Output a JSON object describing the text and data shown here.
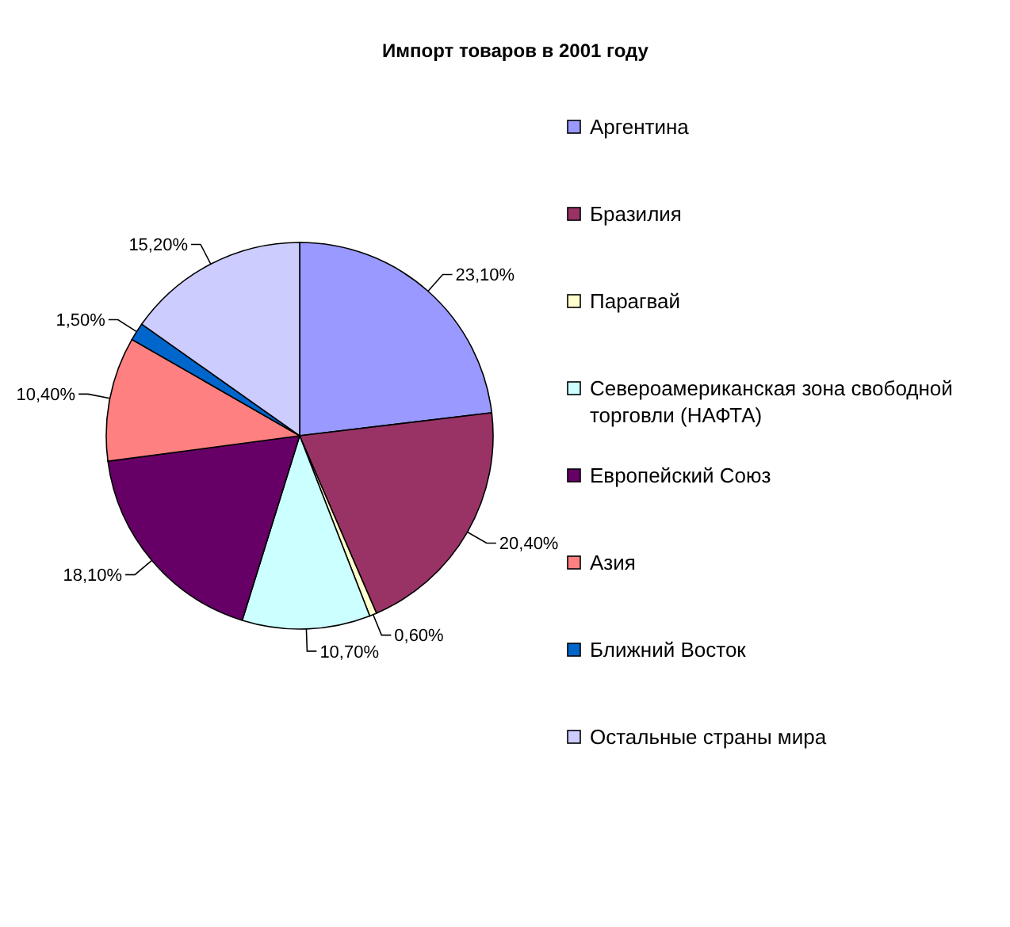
{
  "chart_data": {
    "type": "pie",
    "title": "Импорт товаров в 2001 году",
    "categories": [
      "Аргентина",
      "Бразилия",
      "Парагвай",
      "Североамериканская зона свободной торговли (НАФТА)",
      "Европейский Союз",
      "Азия",
      "Ближний Восток",
      "Остальные страны мира"
    ],
    "values": [
      23.1,
      20.4,
      0.6,
      10.7,
      18.1,
      10.4,
      1.5,
      15.2
    ],
    "colors": [
      "#9999ff",
      "#993366",
      "#ffffcc",
      "#ccffff",
      "#660066",
      "#ff8080",
      "#0066cc",
      "#ccccff"
    ],
    "value_labels": [
      "23,10%",
      "20,40%",
      "0,60%",
      "10,70%",
      "18,10%",
      "10,40%",
      "1,50%",
      "15,20%"
    ],
    "legend": "right"
  }
}
